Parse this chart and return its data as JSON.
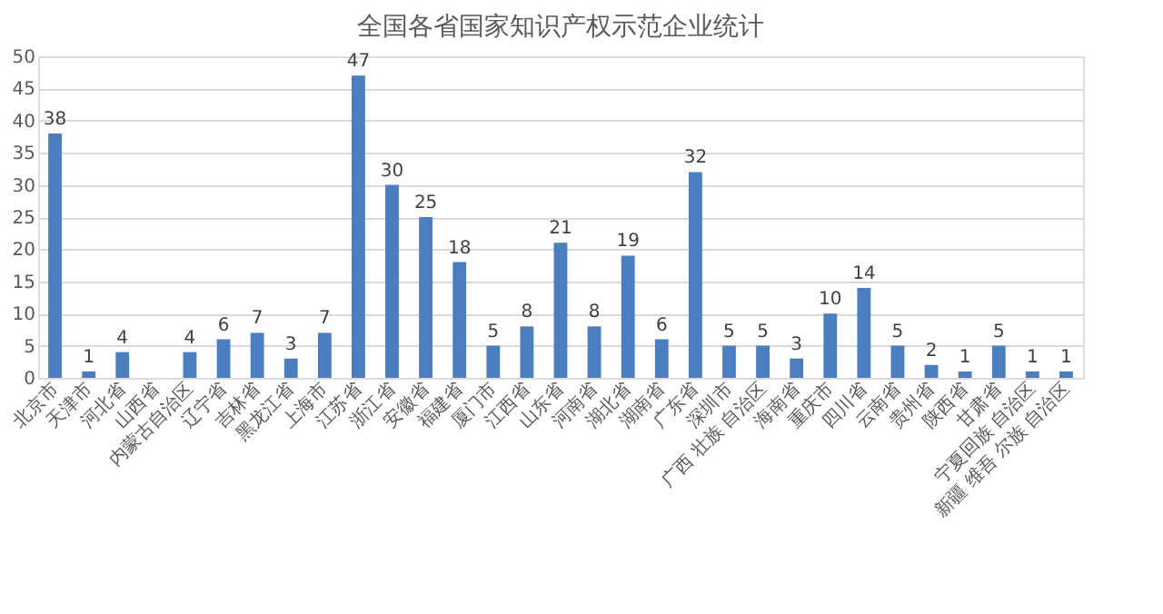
{
  "chart_data": {
    "type": "bar",
    "title": "全国各省国家知识产权示范企业统计",
    "categories": [
      "北京市",
      "天津市",
      "河北省",
      "山西省",
      "内蒙古自治区",
      "辽宁省",
      "吉林省",
      "黑龙江省",
      "上海市",
      "江苏省",
      "浙江省",
      "安徽省",
      "福建省",
      "厦门市",
      "江西省",
      "山东省",
      "河南省",
      "湖北省",
      "湖南省",
      "广东省",
      "深圳市",
      "广西 壮族 自治区",
      "海南省",
      "重庆市",
      "四川省",
      "云南省",
      "贵州省",
      "陕西省",
      "甘肃省",
      "宁夏回族 自治区",
      "新疆 维吾 尔族 自治区"
    ],
    "values": [
      38,
      1,
      4,
      null,
      4,
      6,
      7,
      3,
      7,
      47,
      30,
      25,
      18,
      5,
      8,
      21,
      8,
      19,
      6,
      32,
      5,
      5,
      3,
      10,
      14,
      5,
      2,
      1,
      5,
      1,
      1
    ],
    "color": "#4a7ebf",
    "ylim": [
      0,
      50
    ],
    "yticks": [
      0,
      5,
      10,
      15,
      20,
      25,
      30,
      35,
      40,
      45,
      50
    ],
    "grid": "y",
    "data_labels": true
  }
}
